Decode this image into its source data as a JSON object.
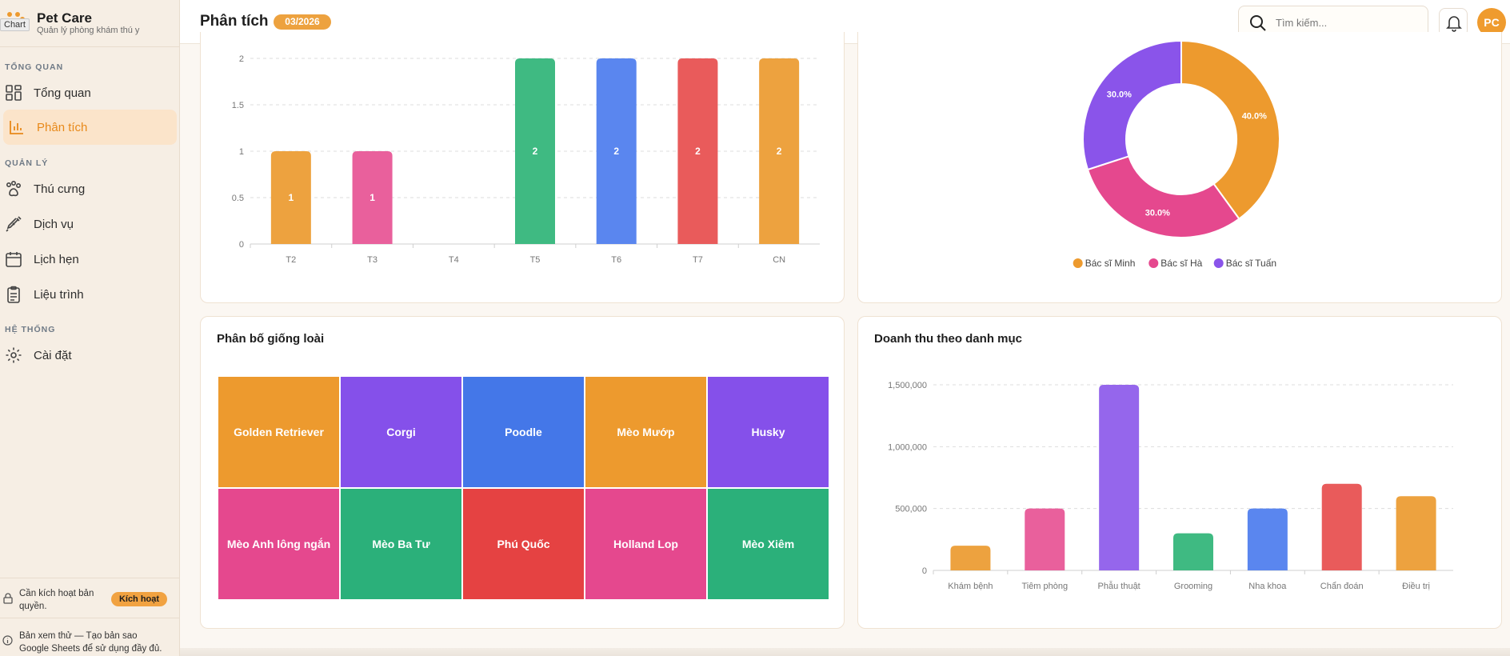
{
  "tooltip": "Chart",
  "app": {
    "name": "Pet Care",
    "subtitle": "Quản lý phòng khám thú y"
  },
  "sidebar": {
    "sections": [
      "TỔNG QUAN",
      "QUẢN LÝ",
      "HỆ THỐNG"
    ],
    "items": [
      {
        "label": "Tổng quan",
        "icon": "dashboard-icon"
      },
      {
        "label": "Phân tích",
        "icon": "bar-chart-icon",
        "active": true
      },
      {
        "label": "Thú cưng",
        "icon": "paw-icon"
      },
      {
        "label": "Dịch vụ",
        "icon": "syringe-icon"
      },
      {
        "label": "Lịch hẹn",
        "icon": "calendar-icon"
      },
      {
        "label": "Liệu trình",
        "icon": "clipboard-icon"
      },
      {
        "label": "Cài đặt",
        "icon": "gear-icon"
      }
    ],
    "license": {
      "line1": "Cần kích hoạt bản",
      "line2": "quyền.",
      "button": "Kích hoạt"
    },
    "trial": {
      "line1": "Bản xem thử — Tạo bản sao",
      "line2": "Google Sheets để sử dụng đầy đủ."
    }
  },
  "header": {
    "title": "Phân tích",
    "period": "03/2026",
    "search_placeholder": "Tìm kiếm...",
    "avatar": "PC"
  },
  "colors": {
    "accent": "#ed9a2e",
    "green": "#2bb07a",
    "blue": "#4a7de9",
    "red": "#e54848",
    "pink": "#e5488e",
    "purple": "#8a54ea"
  },
  "chart_data": [
    {
      "type": "bar",
      "title": "",
      "categories": [
        "T2",
        "T3",
        "T4",
        "T5",
        "T6",
        "T7",
        "CN"
      ],
      "values": [
        1,
        1,
        0,
        2,
        2,
        2,
        2
      ],
      "data_labels": [
        "1",
        "1",
        "",
        "2",
        "2",
        "2",
        "2"
      ],
      "colors": [
        "#eda23f",
        "#e9609c",
        "#eda23f",
        "#3fba82",
        "#5a86ef",
        "#e95b5b",
        "#eda23f"
      ],
      "yticks": [
        "0",
        "0.5",
        "1",
        "1.5",
        "2"
      ],
      "ylim": [
        0,
        2
      ]
    },
    {
      "type": "pie",
      "title": "",
      "labels": [
        "Bác sĩ Minh",
        "Bác sĩ Hà",
        "Bác sĩ Tuấn"
      ],
      "values": [
        40,
        30,
        30
      ],
      "value_labels": [
        "40.0%",
        "30.0%",
        "30.0%"
      ],
      "colors": [
        "#ed9a2e",
        "#e5488e",
        "#8a54ea"
      ]
    },
    {
      "type": "table",
      "title": "Phân bố giống loài",
      "tiles": [
        {
          "label": "Golden Retriever",
          "color": "#ed9a2e"
        },
        {
          "label": "Corgi",
          "color": "#8550ea"
        },
        {
          "label": "Poodle",
          "color": "#4477e8"
        },
        {
          "label": "Mèo Mướp",
          "color": "#ed9a2e"
        },
        {
          "label": "Husky",
          "color": "#8550ea"
        },
        {
          "label": "Mèo Anh lông ngắn",
          "color": "#e5488e"
        },
        {
          "label": "Mèo Ba Tư",
          "color": "#2bb07a"
        },
        {
          "label": "Phú Quốc",
          "color": "#e54242"
        },
        {
          "label": "Holland Lop",
          "color": "#e5488e"
        },
        {
          "label": "Mèo Xiêm",
          "color": "#2bb07a"
        }
      ]
    },
    {
      "type": "bar",
      "title": "Doanh thu theo danh mục",
      "categories": [
        "Khám bệnh",
        "Tiêm phòng",
        "Phẫu thuật",
        "Grooming",
        "Nha khoa",
        "Chẩn đoán",
        "Điều trị"
      ],
      "values": [
        200000,
        500000,
        1500000,
        300000,
        500000,
        700000,
        600000
      ],
      "colors": [
        "#eda23f",
        "#e9609c",
        "#9566ec",
        "#3fba82",
        "#5a86ef",
        "#e95b5b",
        "#eda23f"
      ],
      "yticks": [
        "0",
        "500,000",
        "1,000,000",
        "1,500,000"
      ],
      "ylim": [
        0,
        1500000
      ]
    }
  ]
}
